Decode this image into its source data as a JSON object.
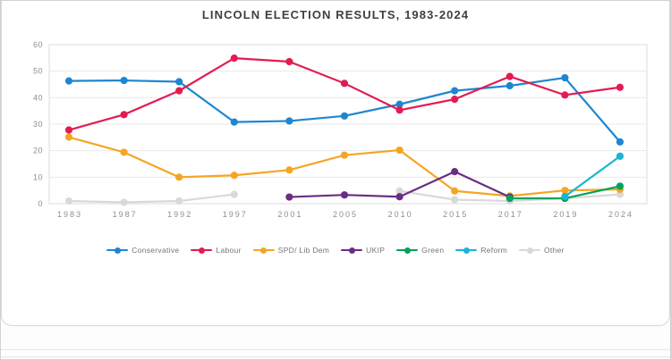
{
  "chart_data": {
    "type": "line",
    "title": "LINCOLN ELECTION RESULTS, 1983-2024",
    "categories": [
      "1983",
      "1987",
      "1992",
      "1997",
      "2001",
      "2005",
      "2010",
      "2015",
      "2017",
      "2019",
      "2024"
    ],
    "series": [
      {
        "name": "Conservative",
        "color": "#1e86d0",
        "values": [
          46.3,
          46.5,
          46.0,
          30.8,
          31.2,
          33.1,
          37.5,
          42.6,
          44.5,
          47.5,
          23.3
        ]
      },
      {
        "name": "Labour",
        "color": "#e21c52",
        "values": [
          27.8,
          33.6,
          42.6,
          54.9,
          53.6,
          45.4,
          35.3,
          39.4,
          48.0,
          41.0,
          43.9
        ]
      },
      {
        "name": "SPD/ Lib Dem",
        "color": "#f5a524",
        "values": [
          25.1,
          19.4,
          10.0,
          10.7,
          12.7,
          18.3,
          20.2,
          4.8,
          2.9,
          5.0,
          5.4
        ]
      },
      {
        "name": "UKIP",
        "color": "#6a2d84",
        "values": [
          null,
          null,
          null,
          null,
          2.5,
          3.3,
          2.6,
          12.1,
          2.5,
          null,
          null
        ]
      },
      {
        "name": "Green",
        "color": "#00a35a",
        "values": [
          null,
          null,
          null,
          null,
          null,
          null,
          null,
          null,
          2.0,
          2.0,
          6.6
        ]
      },
      {
        "name": "Reform",
        "color": "#1cb4d4",
        "values": [
          null,
          null,
          null,
          null,
          null,
          null,
          null,
          null,
          null,
          2.7,
          17.9
        ]
      },
      {
        "name": "Other",
        "color": "#d9d9d9",
        "values": [
          1.0,
          0.5,
          1.0,
          3.5,
          null,
          null,
          4.8,
          1.5,
          1.0,
          2.0,
          3.5
        ]
      }
    ],
    "ylim": [
      0,
      60
    ],
    "ytick_step": 10,
    "yticks": [
      0,
      10,
      20,
      30,
      40,
      50,
      60
    ],
    "grid": true,
    "legend_position": "bottom",
    "axis_text_color": "#8e8e8e",
    "gridline_color": "#e9e9e9",
    "title_color": "#404040"
  }
}
